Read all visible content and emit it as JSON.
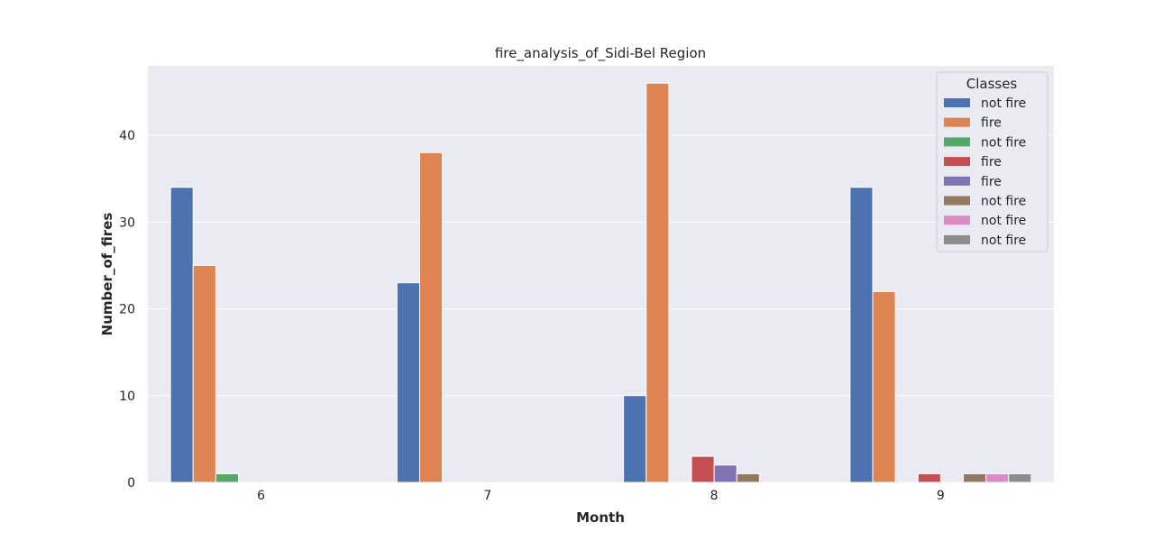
{
  "chart_data": {
    "type": "bar",
    "title": "fire_analysis_of_Sidi-Bel Region",
    "xlabel": "Month",
    "ylabel": "Number_of_fires",
    "categories": [
      "6",
      "7",
      "8",
      "9"
    ],
    "ylim": [
      0,
      48
    ],
    "yticks": [
      0,
      10,
      20,
      30,
      40
    ],
    "grid": true,
    "legend": {
      "title": "Classes",
      "placement": "top-right"
    },
    "series": [
      {
        "name": "not fire",
        "color": "#4c72b0",
        "values": [
          34,
          23,
          10,
          34
        ]
      },
      {
        "name": "fire",
        "color": "#dd8452",
        "values": [
          25,
          38,
          46,
          22
        ]
      },
      {
        "name": "not fire",
        "color": "#55a868",
        "values": [
          1,
          0,
          0,
          0
        ]
      },
      {
        "name": "fire",
        "color": "#c44e52",
        "values": [
          0,
          0,
          3,
          1
        ]
      },
      {
        "name": "fire",
        "color": "#8172b3",
        "values": [
          0,
          0,
          2,
          0
        ]
      },
      {
        "name": "not fire",
        "color": "#937860",
        "values": [
          0,
          0,
          1,
          1
        ]
      },
      {
        "name": "not fire",
        "color": "#da8bc3",
        "values": [
          0,
          0,
          0,
          1
        ]
      },
      {
        "name": "not fire",
        "color": "#8c8c8c",
        "values": [
          0,
          0,
          0,
          1
        ]
      }
    ]
  }
}
